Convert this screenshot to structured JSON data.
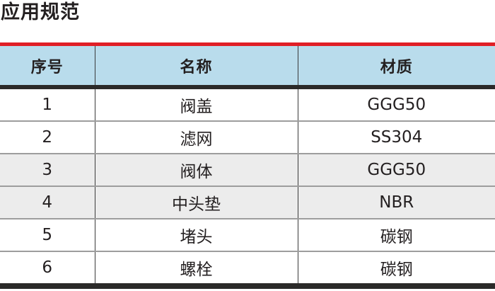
{
  "page": {
    "title": "应用规范"
  },
  "table": {
    "headers": [
      "序号",
      "名称",
      "材质"
    ],
    "rows": [
      {
        "no": "1",
        "name": "阀盖",
        "material": "GGG50",
        "shaded": false
      },
      {
        "no": "2",
        "name": "滤网",
        "material": "SS304",
        "shaded": false
      },
      {
        "no": "3",
        "name": "阀体",
        "material": "GGG50",
        "shaded": true
      },
      {
        "no": "4",
        "name": "中头垫",
        "material": "NBR",
        "shaded": true
      },
      {
        "no": "5",
        "name": "堵头",
        "material": "碳钢",
        "shaded": false
      },
      {
        "no": "6",
        "name": "螺栓",
        "material": "碳钢",
        "shaded": false
      }
    ]
  },
  "colors": {
    "accent_red": "#e01f26",
    "header_blue": "#b9dcec",
    "border_dark": "#2b2a29",
    "row_shade": "#ececec",
    "text": "#231f20"
  }
}
